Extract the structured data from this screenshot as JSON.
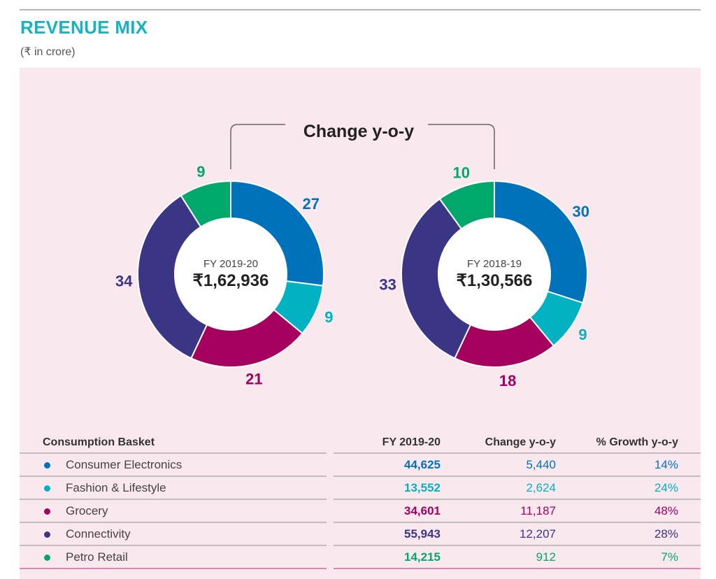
{
  "header": {
    "title": "REVENUE MIX",
    "unit": "(₹ in crore)"
  },
  "chart_data": {
    "type": "pie",
    "annotation": "Change y-o-y",
    "categories": [
      "Consumer Electronics",
      "Fashion & Lifestyle",
      "Grocery",
      "Connectivity",
      "Petro Retail"
    ],
    "colors": [
      "#0072bc",
      "#00b2c2",
      "#a5005d",
      "#3b3586",
      "#00a86e"
    ],
    "charts": [
      {
        "center_label": "FY 2019-20",
        "center_value": "₹1,62,936",
        "values": [
          27,
          9,
          21,
          34,
          9
        ]
      },
      {
        "center_label": "FY 2018-19",
        "center_value": "₹1,30,566",
        "values": [
          30,
          9,
          18,
          33,
          10
        ]
      }
    ]
  },
  "table": {
    "headers": [
      "Consumption Basket",
      "FY 2019-20",
      "Change y-o-y",
      "% Growth y-o-y"
    ],
    "rows": [
      {
        "name": "Consumer Electronics",
        "fy": "44,625",
        "change": "5,440",
        "growth": "14%",
        "color": "#0072bc"
      },
      {
        "name": "Fashion & Lifestyle",
        "fy": "13,552",
        "change": "2,624",
        "growth": "24%",
        "color": "#00b2c2"
      },
      {
        "name": "Grocery",
        "fy": "34,601",
        "change": "11,187",
        "growth": "48%",
        "color": "#a5005d"
      },
      {
        "name": "Connectivity",
        "fy": "55,943",
        "change": "12,207",
        "growth": "28%",
        "color": "#3b3586"
      },
      {
        "name": "Petro Retail",
        "fy": "14,215",
        "change": "912",
        "growth": "7%",
        "color": "#00a86e"
      }
    ]
  }
}
